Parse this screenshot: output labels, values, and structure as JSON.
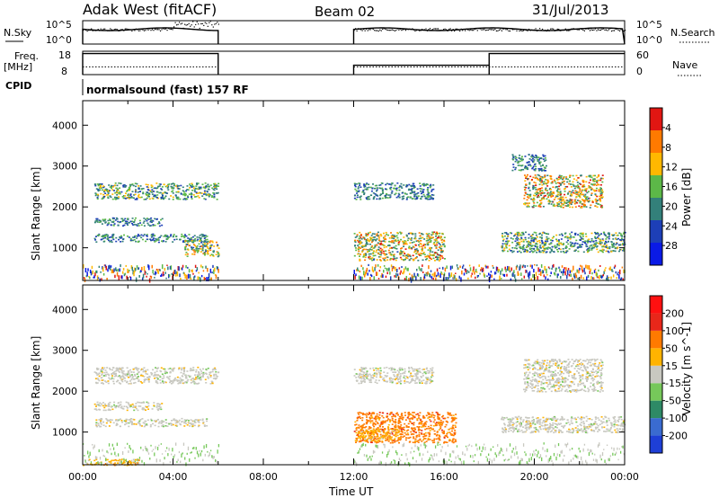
{
  "header": {
    "station": "Adak West (fitACF)",
    "beam": "Beam 02",
    "date": "31/Jul/2013"
  },
  "labels": {
    "nsky": "N.Sky",
    "nsearch": "N.Search",
    "freq": "Freq.",
    "freq_unit": "[MHz]",
    "nave": "Nave",
    "cpid": "CPID",
    "cpid_value": "normalsound (fast) 157 RF"
  },
  "chart_data": [
    {
      "type": "line",
      "name": "noise",
      "left_ticks": [
        "10^5",
        "10^0"
      ],
      "right_ticks": [
        "10^5",
        "10^0"
      ],
      "segments_hours": [
        [
          0,
          6
        ],
        [
          12,
          24
        ]
      ],
      "noisy_interval_hours": [
        4,
        6
      ]
    },
    {
      "type": "line",
      "name": "frequency",
      "left_ticks": [
        "18",
        "8"
      ],
      "right_ticks": [
        "60",
        "0"
      ],
      "ylim_left": [
        8,
        18
      ],
      "ylim_right": [
        0,
        60
      ],
      "segments": [
        {
          "x": [
            0,
            6
          ],
          "freq": [
            17,
            17
          ]
        },
        {
          "x": [
            12,
            18
          ],
          "freq": [
            12,
            12
          ]
        },
        {
          "x": [
            18,
            24
          ],
          "freq": [
            17,
            17
          ]
        }
      ],
      "nave_level": 20
    },
    {
      "type": "heatmap",
      "name": "power",
      "ylabel": "Slant Range [km]",
      "xlim": [
        0,
        24
      ],
      "ylim": [
        200,
        4600
      ],
      "y_ticks": [
        1000,
        2000,
        3000,
        4000
      ],
      "colorbar_label": "Power [dB]",
      "colorbar_ticks": [
        4,
        8,
        12,
        16,
        20,
        24,
        28
      ],
      "colorbar_colors": [
        "#0a1ae6",
        "#1d3fb7",
        "#33807a",
        "#5cb848",
        "#ffb800",
        "#ff7a00",
        "#e11612"
      ],
      "regions": [
        {
          "t": [
            0.5,
            6.0
          ],
          "r": [
            2200,
            2600
          ],
          "level": 0.5
        },
        {
          "t": [
            0.5,
            3.5
          ],
          "r": [
            1550,
            1750
          ],
          "level": 0.4
        },
        {
          "t": [
            0.5,
            5.5
          ],
          "r": [
            1150,
            1350
          ],
          "level": 0.4
        },
        {
          "t": [
            4.5,
            6.0
          ],
          "r": [
            800,
            1200
          ],
          "level": 0.6
        },
        {
          "t": [
            12.0,
            16.0
          ],
          "r": [
            700,
            1400
          ],
          "level": 0.7
        },
        {
          "t": [
            12.0,
            15.5
          ],
          "r": [
            2200,
            2600
          ],
          "level": 0.4
        },
        {
          "t": [
            18.5,
            24.0
          ],
          "r": [
            900,
            1400
          ],
          "level": 0.5
        },
        {
          "t": [
            19.5,
            23.0
          ],
          "r": [
            2000,
            2800
          ],
          "level": 0.7
        },
        {
          "t": [
            19.0,
            20.5
          ],
          "r": [
            2900,
            3300
          ],
          "level": 0.4
        }
      ]
    },
    {
      "type": "heatmap",
      "name": "velocity",
      "xlabel": "Time UT",
      "ylabel": "Slant Range [km]",
      "xlim": [
        0,
        24
      ],
      "ylim": [
        200,
        4600
      ],
      "x_ticks": [
        "00:00",
        "04:00",
        "08:00",
        "12:00",
        "16:00",
        "20:00",
        "00:00"
      ],
      "y_ticks": [
        1000,
        2000,
        3000,
        4000
      ],
      "colorbar_label": "Velocity [m s^-1]",
      "colorbar_ticks": [
        200,
        100,
        50,
        15,
        -15,
        -50,
        -100,
        -200
      ],
      "colorbar_colors": [
        "#1e3fd6",
        "#3a6bd0",
        "#2e8a66",
        "#76c85a",
        "#c8c8c0",
        "#ffb300",
        "#ff7a00",
        "#e8271a",
        "#ff1010"
      ],
      "regions": [
        {
          "t": [
            0.5,
            6.0
          ],
          "r": [
            2200,
            2600
          ],
          "cls": 4
        },
        {
          "t": [
            0.5,
            3.5
          ],
          "r": [
            1550,
            1750
          ],
          "cls": 4
        },
        {
          "t": [
            0.5,
            5.5
          ],
          "r": [
            1150,
            1350
          ],
          "cls": 4
        },
        {
          "t": [
            0.0,
            2.5
          ],
          "r": [
            200,
            350
          ],
          "cls": 5
        },
        {
          "t": [
            12.0,
            16.5
          ],
          "r": [
            750,
            1500
          ],
          "cls": 6
        },
        {
          "t": [
            12.0,
            14.0
          ],
          "r": [
            800,
            1100
          ],
          "cls": 5
        },
        {
          "t": [
            12.0,
            15.5
          ],
          "r": [
            2200,
            2600
          ],
          "cls": 4
        },
        {
          "t": [
            18.5,
            24.0
          ],
          "r": [
            1000,
            1400
          ],
          "cls": 4
        },
        {
          "t": [
            19.5,
            23.0
          ],
          "r": [
            2000,
            2800
          ],
          "cls": 4
        }
      ]
    }
  ]
}
